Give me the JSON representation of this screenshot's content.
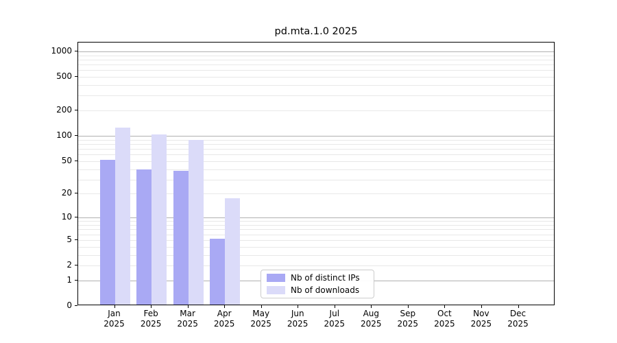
{
  "figure": {
    "title": "pd.mta.1.0 2025"
  },
  "chart_data": {
    "type": "bar",
    "title": "pd.mta.1.0 2025",
    "categories": [
      "Jan 2025",
      "Feb 2025",
      "Mar 2025",
      "Apr 2025",
      "May 2025",
      "Jun 2025",
      "Jul 2025",
      "Aug 2025",
      "Sep 2025",
      "Oct 2025",
      "Nov 2025",
      "Dec 2025"
    ],
    "series": [
      {
        "name": "Nb of distinct IPs",
        "color": "#a9a9f4",
        "values": [
          50,
          38,
          37,
          5,
          0,
          0,
          0,
          0,
          0,
          0,
          0,
          0
        ]
      },
      {
        "name": "Nb of downloads",
        "color": "#dbdbf9",
        "values": [
          120,
          101,
          86,
          17,
          0,
          0,
          0,
          0,
          0,
          0,
          0,
          0
        ]
      }
    ],
    "xlabel": "",
    "ylabel": "",
    "y_scale": "log10(1+x)",
    "ylim": [
      0,
      1270
    ],
    "y_ticks": [
      1000,
      500,
      200,
      100,
      50,
      20,
      10,
      5,
      2,
      1,
      0
    ],
    "major_gridlines": [
      1,
      10,
      100,
      1000
    ],
    "minor_gridlines": [
      2,
      3,
      4,
      5,
      6,
      7,
      8,
      9,
      20,
      30,
      40,
      50,
      60,
      70,
      80,
      90,
      200,
      300,
      400,
      500,
      600,
      700,
      800,
      900
    ],
    "grid": "horizontal",
    "legend_position": "lower center"
  },
  "colors": {
    "distinct_ips": "#a9a9f4",
    "downloads": "#dbdbf9",
    "major_grid": "#b0b0b0",
    "minor_grid": "#e8e8e8",
    "axis": "#000000",
    "legend_border": "#cccccc"
  }
}
